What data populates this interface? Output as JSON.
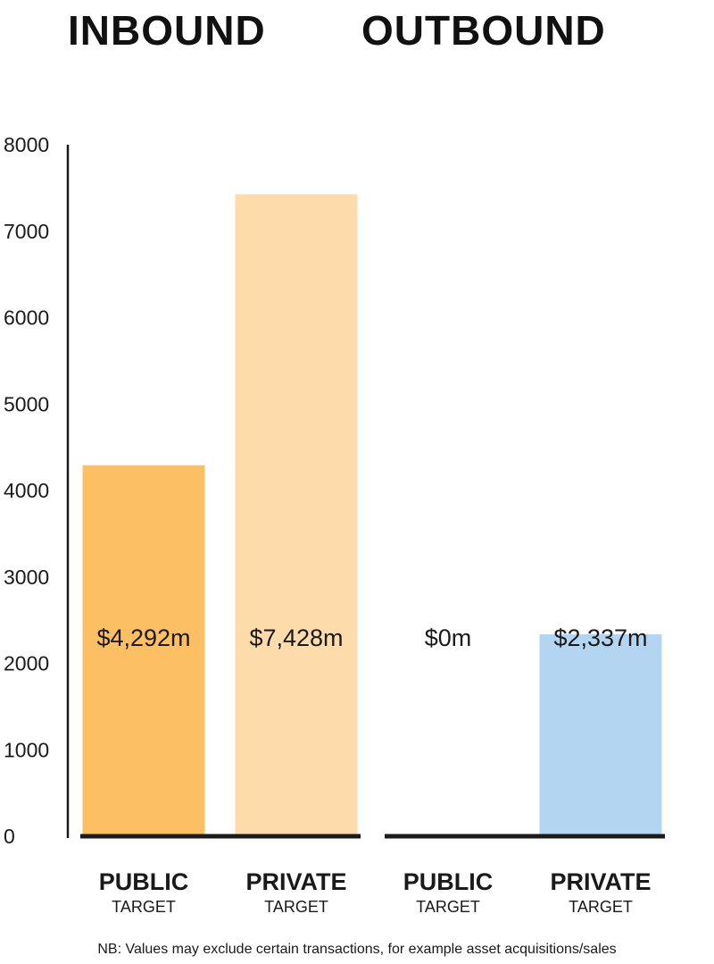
{
  "chart_data": {
    "type": "bar",
    "group_labels": [
      "INBOUND",
      "OUTBOUND"
    ],
    "categories": [
      {
        "label": "PUBLIC",
        "sublabel": "TARGET",
        "group": "INBOUND"
      },
      {
        "label": "PRIVATE",
        "sublabel": "TARGET",
        "group": "INBOUND"
      },
      {
        "label": "PUBLIC",
        "sublabel": "TARGET",
        "group": "OUTBOUND"
      },
      {
        "label": "PRIVATE",
        "sublabel": "TARGET",
        "group": "OUTBOUND"
      }
    ],
    "values": [
      4292,
      7428,
      0,
      2337
    ],
    "value_labels": [
      "$4,292m",
      "$7,428m",
      "$0m",
      "$2,337m"
    ],
    "colors": [
      "#FDBF64",
      "#FDDBAA",
      "#FFFFFF",
      "#B3D5F1"
    ],
    "yticks": [
      "0",
      "1000",
      "2000",
      "3000",
      "4000",
      "5000",
      "6000",
      "7000",
      "8000"
    ],
    "ylim": [
      0,
      8000
    ],
    "grid": false,
    "footnote": "NB: Values may exclude certain transactions, for example asset acquisitions/sales"
  }
}
